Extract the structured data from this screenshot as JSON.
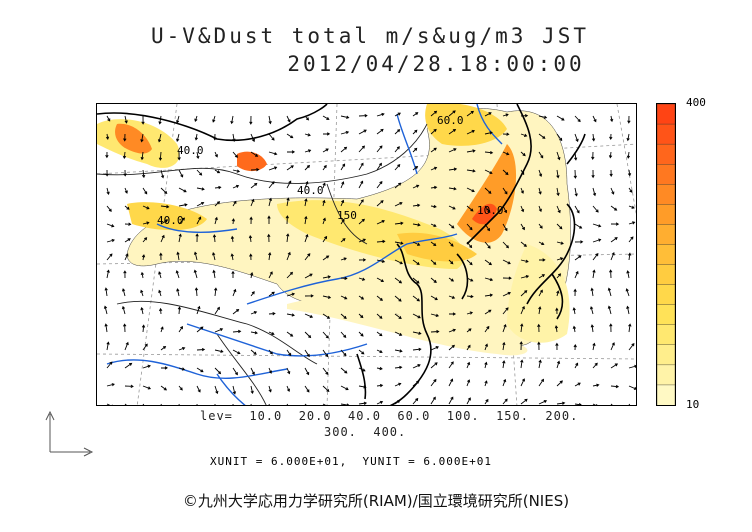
{
  "title_line1": "U-V&Dust total m/s&ug/m3 JST",
  "title_line2": "2012/04/28.18:00:00",
  "colorbar": {
    "max_label": "400",
    "min_label": "10",
    "colors": [
      "#fff9c4",
      "#fff3a8",
      "#ffee8c",
      "#ffe870",
      "#ffe258",
      "#ffd84a",
      "#ffcc40",
      "#ffbe38",
      "#ffae30",
      "#ff9c28",
      "#ff8a24",
      "#ff7820",
      "#ff661c",
      "#ff5418",
      "#ff4414"
    ]
  },
  "levels_line1": "lev=  10.0  20.0  40.0  60.0  100.  150.  200.",
  "levels_line2": "300.  400.",
  "units_text": "XUNIT = 6.000E+01,  YUNIT = 6.000E+01",
  "copyright": "©九州大学応用力学研究所(RIAM)/国立環境研究所(NIES)",
  "contour_labels": [
    "40.0",
    "40.0",
    "150",
    "40.0",
    "60.0",
    "10.0"
  ],
  "colors": {
    "land_line": "#000000",
    "river": "#1e62d8",
    "dust_low": "#fff5c0",
    "dust_mid": "#ffd84a",
    "dust_high": "#ff6a1c"
  }
}
